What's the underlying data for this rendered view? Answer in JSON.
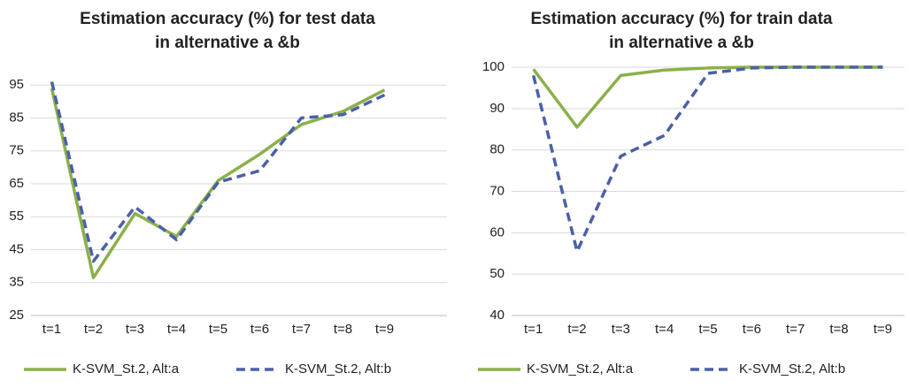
{
  "chart_data": [
    {
      "type": "line",
      "title": [
        "Estimation accuracy (%) for test data",
        "in alternative a &b"
      ],
      "categories": [
        "t=1",
        "t=2",
        "t=3",
        "t=4",
        "t=5",
        "t=6",
        "t=7",
        "t=8",
        "t=9",
        null
      ],
      "series": [
        {
          "name": "K-SVM_St.2, Alt:a",
          "color": "#8bb04a",
          "line_style": "solid",
          "values": [
            94,
            36.5,
            56,
            49,
            66,
            74,
            83,
            87,
            93.5,
            null
          ]
        },
        {
          "name": "K-SVM_St.2, Alt:b",
          "color": "#4a60a8",
          "line_style": "dashed",
          "values": [
            96,
            41.5,
            58,
            48,
            65.5,
            69,
            85,
            86,
            92,
            null
          ]
        }
      ],
      "ylim": [
        25,
        105
      ],
      "yticks": [
        25,
        35,
        45,
        55,
        65,
        75,
        85,
        95
      ],
      "grid": true,
      "legend": "bottom"
    },
    {
      "type": "line",
      "title": [
        "Estimation accuracy (%) for train data",
        "in alternative a &b"
      ],
      "categories": [
        "t=1",
        "t=2",
        "t=3",
        "t=4",
        "t=5",
        "t=6",
        "t=7",
        "t=8",
        "t=9"
      ],
      "series": [
        {
          "name": "K-SVM_St.2, Alt:a",
          "color": "#8bb04a",
          "line_style": "solid",
          "values": [
            99.5,
            85.5,
            98,
            99.3,
            99.8,
            100,
            100,
            100,
            100
          ]
        },
        {
          "name": "K-SVM_St.2, Alt:b",
          "color": "#4a60a8",
          "line_style": "dashed",
          "values": [
            98,
            55.5,
            78.5,
            83.5,
            98.5,
            99.8,
            100,
            100,
            100
          ]
        }
      ],
      "ylim": [
        40,
        100
      ],
      "yticks": [
        40,
        50,
        60,
        70,
        80,
        90,
        100
      ],
      "grid": true,
      "legend": "bottom"
    }
  ]
}
